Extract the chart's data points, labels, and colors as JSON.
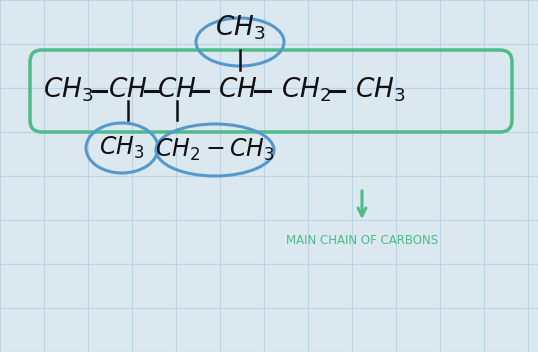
{
  "bg_color": "#dce8f0",
  "grid_color": "#bdd4e4",
  "main_chain_label": "MAIN CHAIN OF CARBONS",
  "main_chain_color": "#4dbb8a",
  "blue_circle_color": "#5599cc",
  "formula_color": "#111111"
}
